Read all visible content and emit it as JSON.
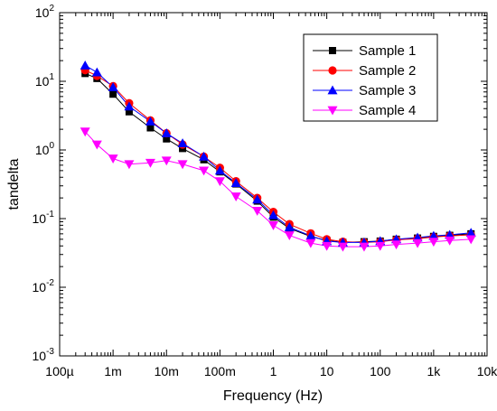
{
  "chart_data": {
    "type": "line",
    "title": "",
    "xlabel": "Frequency (Hz)",
    "ylabel": "tandelta",
    "x_scale": "log",
    "y_scale": "log",
    "xlim": [
      0.0001,
      10000
    ],
    "ylim": [
      0.001,
      100
    ],
    "grid": false,
    "legend_position": "top-right",
    "x_ticks": [
      {
        "value": 0.0001,
        "label": "100µ"
      },
      {
        "value": 0.001,
        "label": "1m"
      },
      {
        "value": 0.01,
        "label": "10m"
      },
      {
        "value": 0.1,
        "label": "100m"
      },
      {
        "value": 1,
        "label": "1"
      },
      {
        "value": 10,
        "label": "10"
      },
      {
        "value": 100,
        "label": "100"
      },
      {
        "value": 1000,
        "label": "1k"
      },
      {
        "value": 10000,
        "label": "10k"
      }
    ],
    "y_ticks": [
      {
        "value": 0.001,
        "base": "10",
        "exp": "-3"
      },
      {
        "value": 0.01,
        "base": "10",
        "exp": "-2"
      },
      {
        "value": 0.1,
        "base": "10",
        "exp": "-1"
      },
      {
        "value": 1,
        "base": "10",
        "exp": "0"
      },
      {
        "value": 10,
        "base": "10",
        "exp": "1"
      },
      {
        "value": 100,
        "base": "10",
        "exp": "2"
      }
    ],
    "x": [
      0.0003,
      0.0005,
      0.001,
      0.002,
      0.005,
      0.01,
      0.02,
      0.05,
      0.1,
      0.2,
      0.5,
      1,
      2,
      5,
      10,
      20,
      50,
      100,
      200,
      500,
      1000,
      2000,
      5000
    ],
    "series": [
      {
        "name": "Sample 1",
        "color": "#000000",
        "marker": "square",
        "values": [
          13,
          11,
          6.5,
          3.6,
          2.1,
          1.45,
          1.05,
          0.72,
          0.48,
          0.32,
          0.18,
          0.105,
          0.072,
          0.055,
          0.048,
          0.045,
          0.046,
          0.047,
          0.05,
          0.052,
          0.055,
          0.057,
          0.06
        ]
      },
      {
        "name": "Sample 2",
        "color": "#ff0000",
        "marker": "circle",
        "values": [
          14.5,
          12,
          8.5,
          4.8,
          2.7,
          1.75,
          1.2,
          0.8,
          0.55,
          0.35,
          0.2,
          0.125,
          0.083,
          0.061,
          0.05,
          0.046,
          0.045,
          0.046,
          0.049,
          0.051,
          0.054,
          0.056,
          0.058
        ]
      },
      {
        "name": "Sample 3",
        "color": "#0000ff",
        "marker": "triangle-up",
        "values": [
          17,
          13.5,
          8.2,
          4.3,
          2.6,
          1.75,
          1.25,
          0.8,
          0.5,
          0.33,
          0.19,
          0.112,
          0.075,
          0.056,
          0.047,
          0.045,
          0.045,
          0.047,
          0.05,
          0.053,
          0.056,
          0.058,
          0.062
        ]
      },
      {
        "name": "Sample 4",
        "color": "#ff00ff",
        "marker": "triangle-down",
        "values": [
          1.85,
          1.2,
          0.75,
          0.62,
          0.65,
          0.7,
          0.62,
          0.5,
          0.35,
          0.21,
          0.13,
          0.08,
          0.057,
          0.044,
          0.04,
          0.039,
          0.039,
          0.04,
          0.042,
          0.044,
          0.046,
          0.048,
          0.05
        ]
      }
    ]
  }
}
